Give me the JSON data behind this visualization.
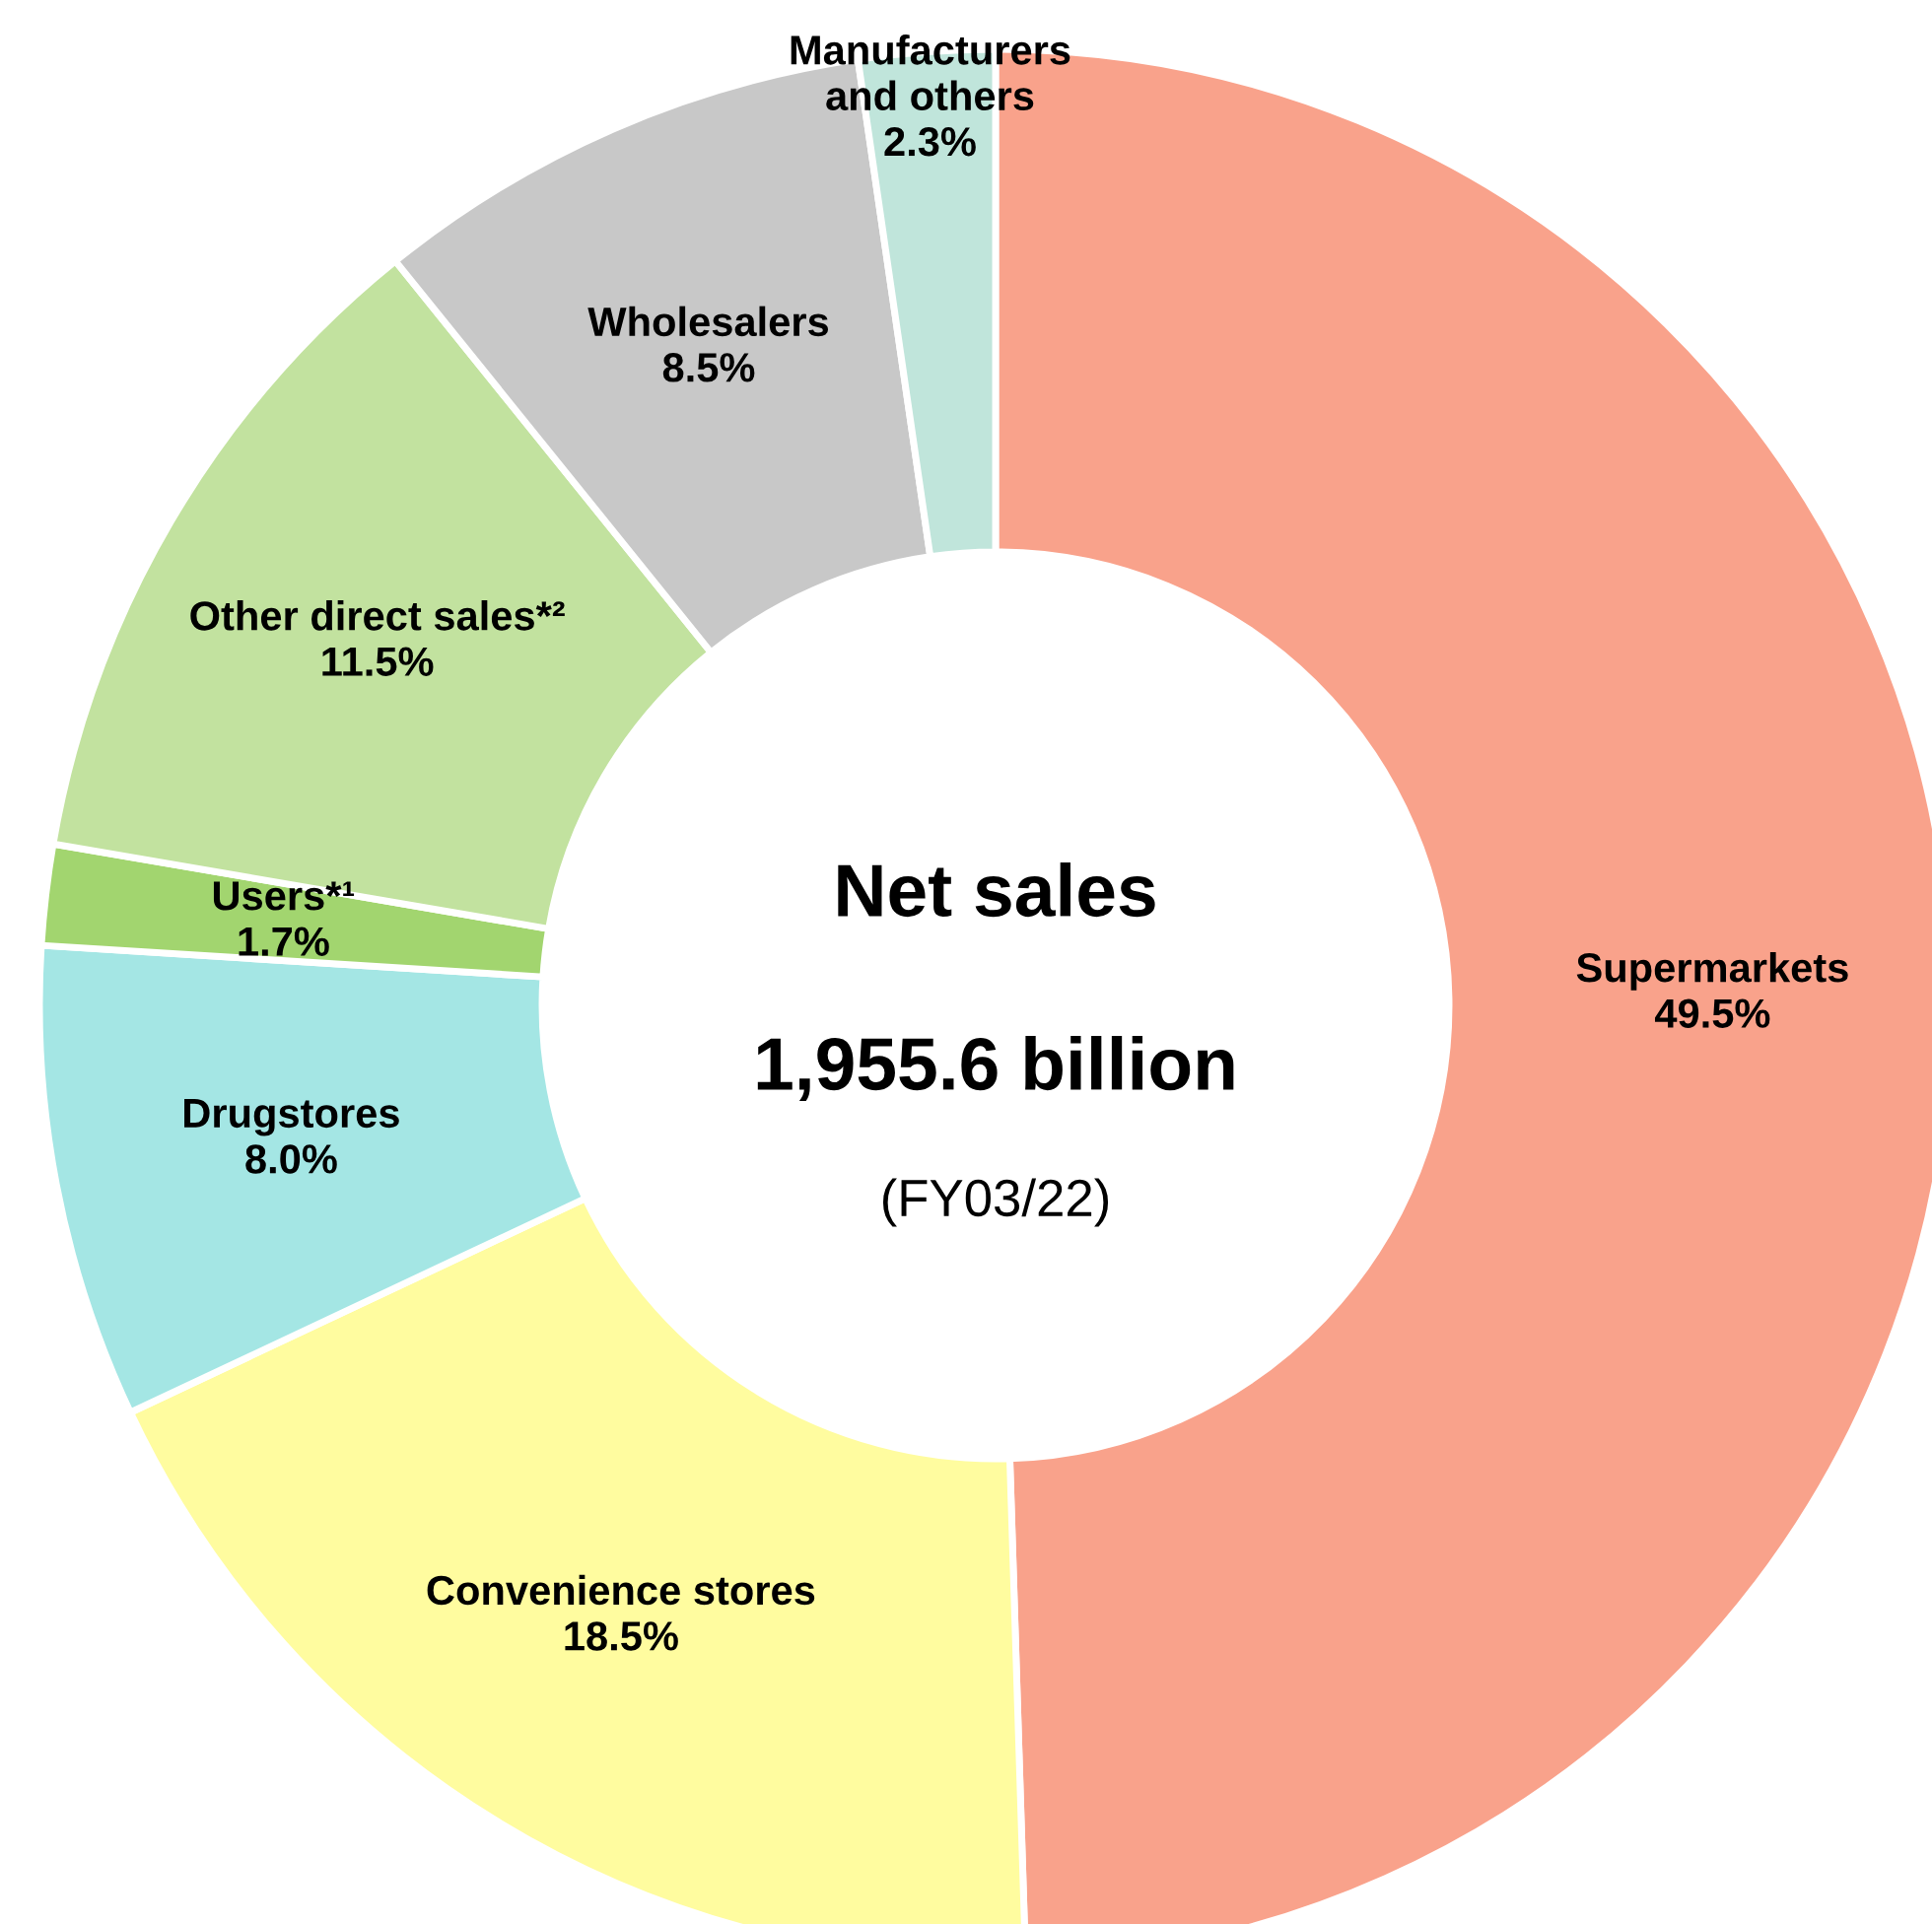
{
  "chart_data": {
    "type": "donut",
    "title": "Net sales",
    "subtitle": "1,955.6 billion",
    "annotations": [
      "(FY03/22)"
    ],
    "categories": [
      "Supermarkets",
      "Convenience stores",
      "Drugstores",
      "Users*¹",
      "Other direct sales*²",
      "Wholesalers",
      "Manufacturers\nand others"
    ],
    "values": [
      49.5,
      18.5,
      8.0,
      1.7,
      11.5,
      8.5,
      2.3
    ],
    "colors": [
      "#f9a28b",
      "#fffc9f",
      "#a4e6e4",
      "#a2d56f",
      "#c2e29f",
      "#c8c8c8",
      "#c0e5db"
    ],
    "value_labels": [
      "49.5%",
      "18.5%",
      "8.0%",
      "1.7%",
      "11.5%",
      "8.5%",
      "2.3%"
    ]
  }
}
